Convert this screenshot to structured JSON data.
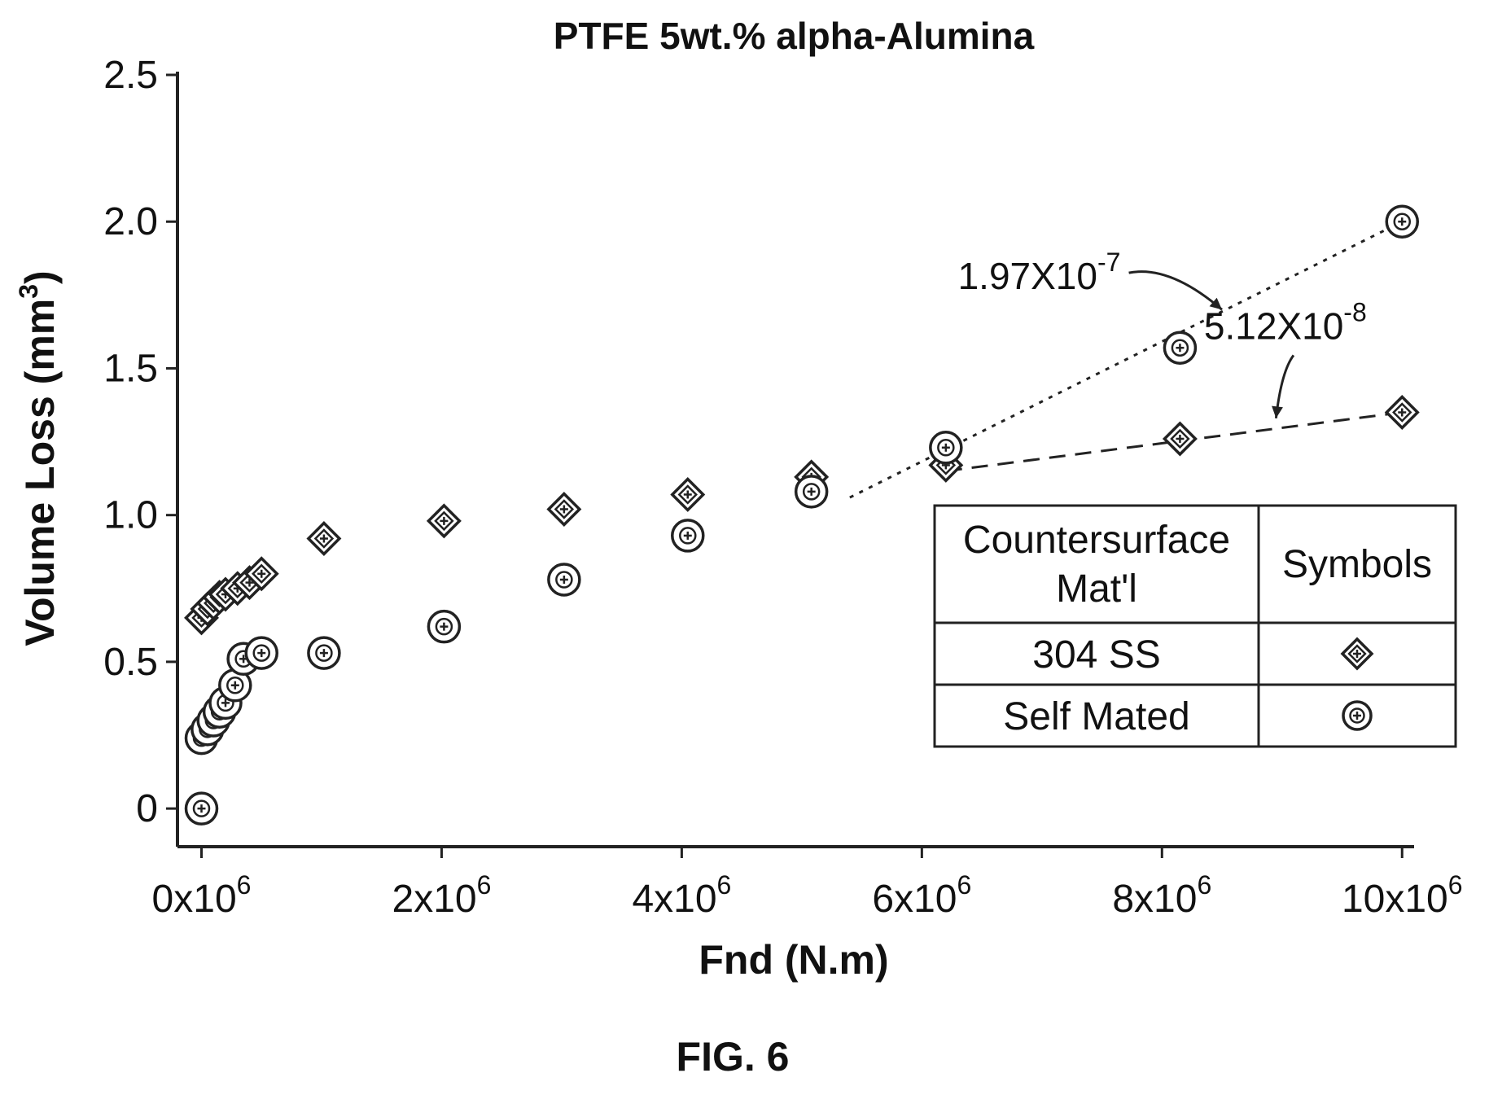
{
  "chart_data": {
    "type": "scatter",
    "title": "PTFE 5wt.% alpha-Alumina",
    "xlabel": "Fnd (N.m)",
    "ylabel": "Volume Loss (mm",
    "ylabel_sup": "3",
    "ylabel_close": ")",
    "xlim": [
      -200000,
      10100000
    ],
    "ylim": [
      -0.13,
      2.5
    ],
    "xticks": [
      {
        "value": 0,
        "mantissa": "0x10",
        "exp": "6"
      },
      {
        "value": 2000000,
        "mantissa": "2x10",
        "exp": "6"
      },
      {
        "value": 4000000,
        "mantissa": "4x10",
        "exp": "6"
      },
      {
        "value": 6000000,
        "mantissa": "6x10",
        "exp": "6"
      },
      {
        "value": 8000000,
        "mantissa": "8x10",
        "exp": "6"
      },
      {
        "value": 10000000,
        "mantissa": "10x10",
        "exp": "6"
      }
    ],
    "yticks": [
      {
        "value": 0,
        "label": "0"
      },
      {
        "value": 0.5,
        "label": "0.5"
      },
      {
        "value": 1.0,
        "label": "1.0"
      },
      {
        "value": 1.5,
        "label": "1.5"
      },
      {
        "value": 2.0,
        "label": "2.0"
      },
      {
        "value": 2.5,
        "label": "2.5"
      }
    ],
    "series": [
      {
        "name": "304 SS",
        "marker": "diamond",
        "x": [
          0,
          50000,
          100000,
          150000,
          200000,
          300000,
          400000,
          500000,
          1020000,
          2020000,
          3020000,
          4050000,
          5080000,
          6200000,
          8150000,
          10000000
        ],
        "y": [
          0.65,
          0.68,
          0.7,
          0.72,
          0.73,
          0.75,
          0.77,
          0.8,
          0.92,
          0.98,
          1.02,
          1.07,
          1.13,
          1.17,
          1.26,
          1.35
        ]
      },
      {
        "name": "Self Mated",
        "marker": "circle-plus",
        "x": [
          0,
          0,
          50000,
          100000,
          150000,
          200000,
          280000,
          350000,
          500000,
          1020000,
          2020000,
          3020000,
          4050000,
          5080000,
          6200000,
          8150000,
          10000000
        ],
        "y": [
          0.0,
          0.24,
          0.27,
          0.3,
          0.33,
          0.36,
          0.42,
          0.51,
          0.53,
          0.53,
          0.62,
          0.78,
          0.93,
          1.08,
          1.23,
          1.57,
          2.0
        ]
      }
    ],
    "fit_lines": [
      {
        "series": "Self Mated",
        "x": [
          5400000,
          10000000
        ],
        "y": [
          1.06,
          2.0
        ],
        "style": "dotted"
      },
      {
        "series": "304 SS",
        "x": [
          6200000,
          10000000
        ],
        "y": [
          1.15,
          1.35
        ],
        "style": "dashed"
      }
    ],
    "annotations": [
      {
        "mantissa": "1.97X10",
        "exp": "-7",
        "x": 6300000,
        "y": 1.77,
        "arrow_to": [
          8500000,
          1.7
        ]
      },
      {
        "mantissa": "5.12X10",
        "exp": "-8",
        "x": 8350000,
        "y": 1.6,
        "arrow_to": [
          8950000,
          1.33
        ]
      }
    ],
    "legend": {
      "placement": "center-right",
      "header": [
        "Countersurface",
        "Mat'l",
        "Symbols"
      ],
      "rows": [
        "304 SS",
        "Self Mated"
      ]
    },
    "figure_label": "FIG. 6",
    "grid": false
  }
}
